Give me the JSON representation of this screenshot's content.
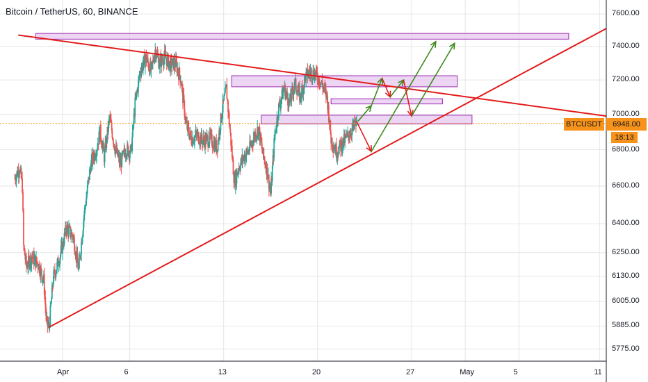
{
  "header": {
    "title": "Bitcoin / TetherUS, 60, BINANCE"
  },
  "chart_data": {
    "type": "candlestick",
    "symbol": "BTCUSDT",
    "exchange": "BINANCE",
    "interval": "60",
    "last_price": 6948.0,
    "last_price_label": "6948.00",
    "countdown": "18:13",
    "y_scale": "log",
    "ylim": [
      5700,
      7700
    ],
    "y_ticks": [
      7600,
      7400,
      7200,
      7000,
      6800,
      6600,
      6400,
      6250,
      6130,
      6005,
      5885,
      5775
    ],
    "y_tick_labels": [
      "7600.00",
      "7400.00",
      "7200.00",
      "7000.00",
      "6800.00",
      "6600.00",
      "6400.00",
      "6250.00",
      "6130.00",
      "6005.00",
      "5885.00",
      "5775.00"
    ],
    "x_ticks": [
      "Apr",
      "6",
      "13",
      "20",
      "27",
      "May",
      "5",
      "11"
    ],
    "x_tick_days": [
      1,
      6,
      13,
      20,
      27,
      31,
      35,
      41
    ],
    "x_range_days": [
      -2.6,
      41.5
    ],
    "price_path": [
      [
        -2.6,
        6640
      ],
      [
        -2.2,
        6700
      ],
      [
        -2.0,
        6600
      ],
      [
        -1.9,
        6280
      ],
      [
        -1.7,
        6180
      ],
      [
        -1.3,
        6230
      ],
      [
        -0.8,
        6190
      ],
      [
        -0.4,
        6110
      ],
      [
        -0.2,
        5900
      ],
      [
        0.0,
        5880
      ],
      [
        0.3,
        6120
      ],
      [
        0.8,
        6230
      ],
      [
        1.3,
        6380
      ],
      [
        1.8,
        6330
      ],
      [
        2.2,
        6160
      ],
      [
        2.6,
        6450
      ],
      [
        3.1,
        6720
      ],
      [
        3.5,
        6800
      ],
      [
        3.8,
        6900
      ],
      [
        4.1,
        6760
      ],
      [
        4.5,
        6980
      ],
      [
        4.9,
        6810
      ],
      [
        5.3,
        6720
      ],
      [
        5.7,
        6800
      ],
      [
        6.1,
        6790
      ],
      [
        6.4,
        7060
      ],
      [
        6.8,
        7260
      ],
      [
        7.2,
        7330
      ],
      [
        7.6,
        7250
      ],
      [
        7.9,
        7380
      ],
      [
        8.2,
        7300
      ],
      [
        8.6,
        7340
      ],
      [
        9.0,
        7290
      ],
      [
        9.4,
        7300
      ],
      [
        9.8,
        7210
      ],
      [
        10.2,
        6940
      ],
      [
        10.6,
        6860
      ],
      [
        11.0,
        6880
      ],
      [
        11.5,
        6850
      ],
      [
        12.0,
        6860
      ],
      [
        12.5,
        6810
      ],
      [
        12.9,
        7030
      ],
      [
        13.2,
        7150
      ],
      [
        13.5,
        6880
      ],
      [
        13.8,
        6620
      ],
      [
        14.1,
        6700
      ],
      [
        14.5,
        6760
      ],
      [
        14.9,
        6800
      ],
      [
        15.3,
        6880
      ],
      [
        15.6,
        6920
      ],
      [
        15.9,
        6780
      ],
      [
        16.2,
        6700
      ],
      [
        16.5,
        6560
      ],
      [
        16.8,
        6880
      ],
      [
        17.1,
        7040
      ],
      [
        17.5,
        7150
      ],
      [
        17.9,
        7060
      ],
      [
        18.3,
        7180
      ],
      [
        18.7,
        7100
      ],
      [
        19.1,
        7220
      ],
      [
        19.5,
        7250
      ],
      [
        19.9,
        7230
      ],
      [
        20.3,
        7180
      ],
      [
        20.7,
        7100
      ],
      [
        21.0,
        6860
      ],
      [
        21.4,
        6790
      ],
      [
        21.8,
        6830
      ],
      [
        22.2,
        6870
      ],
      [
        22.6,
        6920
      ],
      [
        22.9,
        6948
      ]
    ],
    "trendlines": [
      {
        "name": "resistance",
        "color": "#e31b1b",
        "from": [
          -2.3,
          7470
        ],
        "to": [
          41.5,
          6990
        ]
      },
      {
        "name": "support",
        "color": "#e31b1b",
        "from": [
          0.0,
          5880
        ],
        "to": [
          41.5,
          7510
        ]
      }
    ],
    "zones": [
      {
        "x": [
          -1.0,
          38.7
        ],
        "y": [
          7445,
          7480
        ]
      },
      {
        "x": [
          13.6,
          30.4
        ],
        "y": [
          7160,
          7225
        ]
      },
      {
        "x": [
          21.0,
          29.3
        ],
        "y": [
          7060,
          7090
        ]
      },
      {
        "x": [
          15.8,
          31.5
        ],
        "y": [
          6945,
          6995
        ]
      }
    ],
    "arrows": [
      {
        "color": "#e31b1b",
        "from": [
          22.9,
          6960
        ],
        "to": [
          24.0,
          6790
        ]
      },
      {
        "color": "#3a8a1a",
        "from": [
          24.0,
          6790
        ],
        "to": [
          28.8,
          7430
        ]
      },
      {
        "color": "#3a8a1a",
        "from": [
          23.0,
          6960
        ],
        "to": [
          24.0,
          7050
        ]
      },
      {
        "color": "#3a8a1a",
        "from": [
          24.0,
          7050
        ],
        "to": [
          24.8,
          7210
        ]
      },
      {
        "color": "#e31b1b",
        "from": [
          24.8,
          7210
        ],
        "to": [
          25.4,
          7100
        ]
      },
      {
        "color": "#3a8a1a",
        "from": [
          25.4,
          7100
        ],
        "to": [
          26.4,
          7200
        ]
      },
      {
        "color": "#e31b1b",
        "from": [
          26.4,
          7200
        ],
        "to": [
          27.0,
          6990
        ]
      },
      {
        "color": "#3a8a1a",
        "from": [
          27.0,
          6990
        ],
        "to": [
          30.2,
          7420
        ]
      }
    ],
    "colors": {
      "up": "#26a69a",
      "down": "#ef5350",
      "trendline": "#e31b1b",
      "arrow_up": "#3a8a1a",
      "zone_fill": "#e6c8f0",
      "zone_border": "#9c27b0",
      "price_line": "#f7931a",
      "grid": "#e6e6e6",
      "axis": "#131722",
      "tag_background": "#f7931a"
    }
  }
}
